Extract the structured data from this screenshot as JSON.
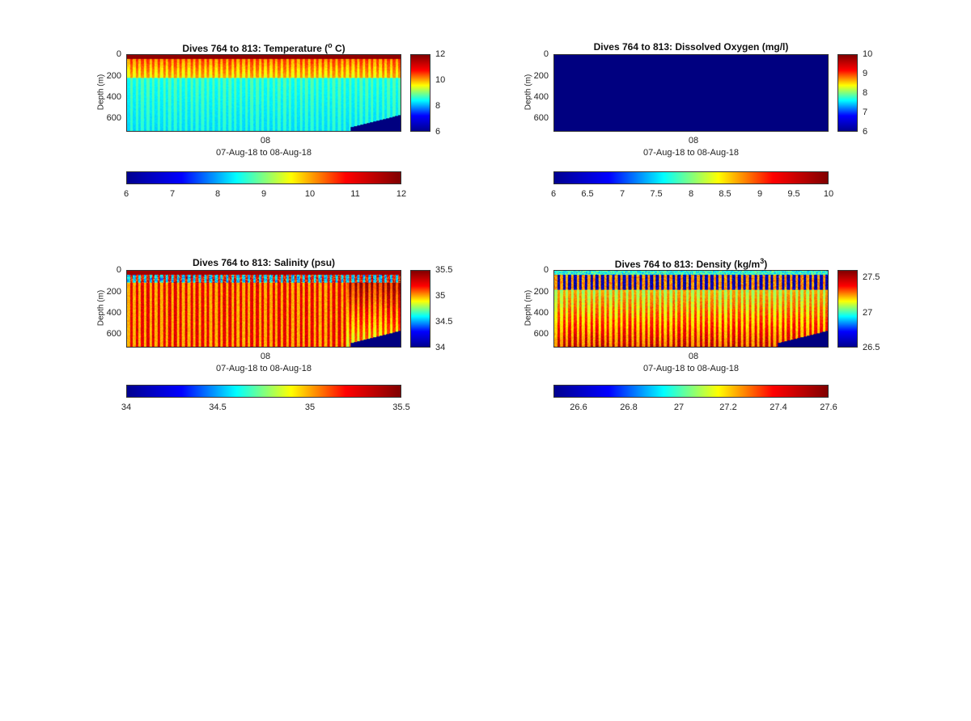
{
  "chart_data": [
    {
      "type": "heatmap",
      "title": "Dives 764 to 813: Temperature (",
      "title_sup": "o",
      "title_tail": " C)",
      "ylabel": "Depth (m)",
      "yticks": [
        "0",
        "200",
        "400",
        "600"
      ],
      "xtick": "08",
      "xlabel": "07-Aug-18 to 08-Aug-18",
      "ylim": [
        0,
        720
      ],
      "clim": [
        6,
        12
      ],
      "colorbar_v_ticks": [
        "12",
        "10",
        "8",
        "6"
      ],
      "colorbar_h_ticks": [
        "6",
        "7",
        "8",
        "9",
        "10",
        "11",
        "12"
      ],
      "field": "temperature",
      "surface_value": 11.8,
      "mid_value": 9.6,
      "deep_value": 8.6,
      "missing_value": 6.0
    },
    {
      "type": "heatmap",
      "title": "Dives 764 to 813: Dissolved Oxygen (mg/l)",
      "title_sup": "",
      "title_tail": "",
      "ylabel": "Depth (m)",
      "yticks": [
        "0",
        "200",
        "400",
        "600"
      ],
      "xtick": "08",
      "xlabel": "07-Aug-18 to 08-Aug-18",
      "ylim": [
        0,
        720
      ],
      "clim": [
        6,
        10
      ],
      "colorbar_v_ticks": [
        "10",
        "9",
        "8",
        "7",
        "6"
      ],
      "colorbar_h_ticks": [
        "6",
        "6.5",
        "7",
        "7.5",
        "8",
        "8.5",
        "9",
        "9.5",
        "10"
      ],
      "field": "oxygen",
      "surface_value": 6.0,
      "mid_value": 6.0,
      "deep_value": 6.0,
      "missing_value": 6.0
    },
    {
      "type": "heatmap",
      "title": "Dives 764 to 813: Salinity (psu)",
      "title_sup": "",
      "title_tail": "",
      "ylabel": "Depth (m)",
      "yticks": [
        "0",
        "200",
        "400",
        "600"
      ],
      "xtick": "08",
      "xlabel": "07-Aug-18 to 08-Aug-18",
      "ylim": [
        0,
        720
      ],
      "clim": [
        34,
        35.5
      ],
      "colorbar_v_ticks": [
        "35.5",
        "35",
        "34.5",
        "34"
      ],
      "colorbar_h_ticks": [
        "34",
        "34.5",
        "35",
        "35.5"
      ],
      "field": "salinity",
      "surface_value": 35.4,
      "mid_value": 35.3,
      "deep_value": 35.15,
      "missing_value": 34.0
    },
    {
      "type": "heatmap",
      "title": "Dives 764 to 813: Density (kg/m",
      "title_sup": "3",
      "title_tail": ")",
      "ylabel": "Depth (m)",
      "yticks": [
        "0",
        "200",
        "400",
        "600"
      ],
      "xtick": "08",
      "xlabel": "07-Aug-18 to 08-Aug-18",
      "ylim": [
        0,
        720
      ],
      "clim": [
        26.5,
        27.6
      ],
      "colorbar_v_ticks": [
        "27.5",
        "27",
        "26.5"
      ],
      "colorbar_h_ticks": [
        "26.6",
        "26.8",
        "27",
        "27.2",
        "27.4",
        "27.6"
      ],
      "field": "density",
      "surface_value": 26.55,
      "mid_value": 27.15,
      "deep_value": 27.4,
      "missing_value": 26.5
    }
  ],
  "num_dives": 50
}
